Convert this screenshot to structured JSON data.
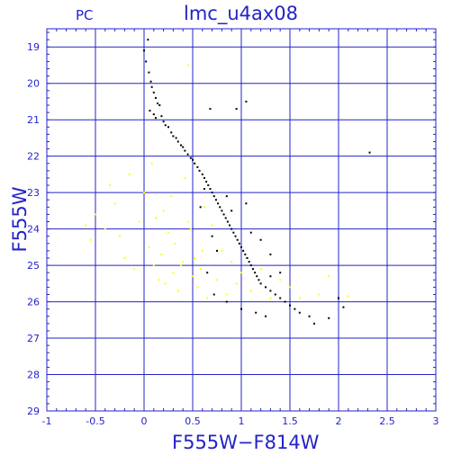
{
  "header": {
    "camera": "PC",
    "title": "lmc_u4ax08"
  },
  "colors": {
    "axis": "#2323c8",
    "grid": "#2323c8",
    "series_black": "#000000",
    "series_yellow": "#ffff00"
  },
  "chart_data": {
    "type": "scatter",
    "title": "lmc_u4ax08",
    "xlabel": "F555W−F814W",
    "ylabel": "F555W",
    "xlim": [
      -1,
      3
    ],
    "ylim": [
      29,
      18.5
    ],
    "y_inverted": true,
    "grid": true,
    "xticks": [
      "-1",
      "-0.5",
      "0",
      "0.5",
      "1",
      "1.5",
      "2",
      "2.5",
      "3"
    ],
    "yticks": [
      "19",
      "20",
      "21",
      "22",
      "23",
      "24",
      "25",
      "26",
      "27",
      "28",
      "29"
    ],
    "series": [
      {
        "color": "#000000",
        "points": [
          [
            0.0,
            19.1
          ],
          [
            0.02,
            19.4
          ],
          [
            0.04,
            18.8
          ],
          [
            0.05,
            19.7
          ],
          [
            0.07,
            19.95
          ],
          [
            0.08,
            20.1
          ],
          [
            0.1,
            20.25
          ],
          [
            0.12,
            20.4
          ],
          [
            0.14,
            20.55
          ],
          [
            0.16,
            20.6
          ],
          [
            0.06,
            20.75
          ],
          [
            0.1,
            20.85
          ],
          [
            0.12,
            20.95
          ],
          [
            0.18,
            20.9
          ],
          [
            0.2,
            21.05
          ],
          [
            0.22,
            21.15
          ],
          [
            0.25,
            21.2
          ],
          [
            0.28,
            21.35
          ],
          [
            0.3,
            21.45
          ],
          [
            0.33,
            21.5
          ],
          [
            0.35,
            21.6
          ],
          [
            0.38,
            21.7
          ],
          [
            0.4,
            21.75
          ],
          [
            0.42,
            21.85
          ],
          [
            0.45,
            21.95
          ],
          [
            0.48,
            22.05
          ],
          [
            0.5,
            22.1
          ],
          [
            0.52,
            22.2
          ],
          [
            0.55,
            22.3
          ],
          [
            0.57,
            22.4
          ],
          [
            0.6,
            22.5
          ],
          [
            0.62,
            22.6
          ],
          [
            0.64,
            22.7
          ],
          [
            0.66,
            22.8
          ],
          [
            0.68,
            22.9
          ],
          [
            0.7,
            23.0
          ],
          [
            0.72,
            23.1
          ],
          [
            0.74,
            23.2
          ],
          [
            0.76,
            23.3
          ],
          [
            0.78,
            23.4
          ],
          [
            0.8,
            23.5
          ],
          [
            0.82,
            23.6
          ],
          [
            0.84,
            23.7
          ],
          [
            0.86,
            23.8
          ],
          [
            0.88,
            23.9
          ],
          [
            0.9,
            24.0
          ],
          [
            0.92,
            24.1
          ],
          [
            0.94,
            24.2
          ],
          [
            0.96,
            24.3
          ],
          [
            0.98,
            24.4
          ],
          [
            1.0,
            24.5
          ],
          [
            1.02,
            24.6
          ],
          [
            1.04,
            24.7
          ],
          [
            1.06,
            24.8
          ],
          [
            1.08,
            24.9
          ],
          [
            1.1,
            25.0
          ],
          [
            1.12,
            25.1
          ],
          [
            1.14,
            25.2
          ],
          [
            1.16,
            25.3
          ],
          [
            1.18,
            25.4
          ],
          [
            1.2,
            25.5
          ],
          [
            1.25,
            25.6
          ],
          [
            1.3,
            25.7
          ],
          [
            1.35,
            25.8
          ],
          [
            1.4,
            25.9
          ],
          [
            1.45,
            26.0
          ],
          [
            1.5,
            26.1
          ],
          [
            1.55,
            26.2
          ],
          [
            1.6,
            26.3
          ],
          [
            1.7,
            26.4
          ],
          [
            1.75,
            26.6
          ],
          [
            1.9,
            26.45
          ],
          [
            2.0,
            25.9
          ],
          [
            2.05,
            26.15
          ],
          [
            2.32,
            21.9
          ],
          [
            1.05,
            20.5
          ],
          [
            0.95,
            20.7
          ],
          [
            0.68,
            20.7
          ],
          [
            0.62,
            22.9
          ],
          [
            0.58,
            23.4
          ],
          [
            0.7,
            24.2
          ],
          [
            0.75,
            24.6
          ],
          [
            0.65,
            25.2
          ],
          [
            0.72,
            25.8
          ],
          [
            0.85,
            26.0
          ],
          [
            1.0,
            26.2
          ],
          [
            1.15,
            26.3
          ],
          [
            1.25,
            26.4
          ],
          [
            1.3,
            25.3
          ],
          [
            1.4,
            25.2
          ],
          [
            0.9,
            23.5
          ],
          [
            0.85,
            23.1
          ],
          [
            1.05,
            23.3
          ],
          [
            1.1,
            24.1
          ],
          [
            1.2,
            24.3
          ],
          [
            1.3,
            24.7
          ]
        ]
      },
      {
        "color": "#ffff00",
        "points": [
          [
            0.45,
            19.5
          ],
          [
            -0.35,
            22.8
          ],
          [
            -0.5,
            23.6
          ],
          [
            -0.6,
            23.9
          ],
          [
            -0.55,
            24.3
          ],
          [
            -0.4,
            24.0
          ],
          [
            -0.3,
            23.3
          ],
          [
            -0.2,
            24.8
          ],
          [
            -0.1,
            25.1
          ],
          [
            0.0,
            23.0
          ],
          [
            0.05,
            24.5
          ],
          [
            0.1,
            25.0
          ],
          [
            0.15,
            25.4
          ],
          [
            0.2,
            23.5
          ],
          [
            0.25,
            24.1
          ],
          [
            0.3,
            25.2
          ],
          [
            0.35,
            25.7
          ],
          [
            0.4,
            24.9
          ],
          [
            0.45,
            23.8
          ],
          [
            0.5,
            25.3
          ],
          [
            0.55,
            25.6
          ],
          [
            0.6,
            24.6
          ],
          [
            0.65,
            25.9
          ],
          [
            0.7,
            23.9
          ],
          [
            -0.15,
            22.5
          ],
          [
            -0.25,
            24.2
          ],
          [
            -0.05,
            23.8
          ],
          [
            0.08,
            22.2
          ],
          [
            0.12,
            23.7
          ],
          [
            0.18,
            24.7
          ],
          [
            0.22,
            25.5
          ],
          [
            0.28,
            23.1
          ],
          [
            0.32,
            24.4
          ],
          [
            0.38,
            25.0
          ],
          [
            0.42,
            22.6
          ],
          [
            0.48,
            24.0
          ],
          [
            0.52,
            24.8
          ],
          [
            0.58,
            25.1
          ],
          [
            0.62,
            23.4
          ],
          [
            0.75,
            25.4
          ],
          [
            0.8,
            24.6
          ],
          [
            0.85,
            25.8
          ],
          [
            0.9,
            24.9
          ],
          [
            0.95,
            25.5
          ],
          [
            1.0,
            25.2
          ],
          [
            1.1,
            25.7
          ],
          [
            1.2,
            25.1
          ],
          [
            1.3,
            25.9
          ],
          [
            1.4,
            25.4
          ],
          [
            1.5,
            25.6
          ],
          [
            1.6,
            25.9
          ],
          [
            1.8,
            25.8
          ],
          [
            1.9,
            25.3
          ],
          [
            2.1,
            25.85
          ]
        ]
      }
    ]
  }
}
